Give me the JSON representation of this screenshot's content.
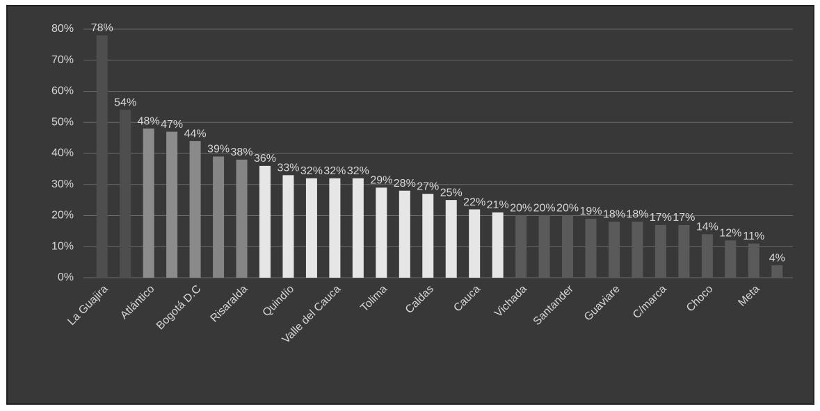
{
  "chart_data": {
    "type": "bar",
    "categories": [
      "La Guajira",
      null,
      "Atlántico",
      null,
      "Bogotá D.C",
      null,
      "Risaralda",
      null,
      "Quindío",
      null,
      "Valle del Cauca",
      null,
      "Tolima",
      null,
      "Caldas",
      null,
      "Cauca",
      null,
      "Vichada",
      null,
      "Santander",
      null,
      "Guaviare",
      null,
      "C/marca",
      null,
      "Choco",
      null,
      "Meta",
      null
    ],
    "values": [
      78,
      54,
      48,
      47,
      44,
      39,
      38,
      36,
      33,
      32,
      32,
      32,
      29,
      28,
      27,
      25,
      22,
      21,
      20,
      20,
      20,
      19,
      18,
      18,
      17,
      17,
      14,
      12,
      11,
      4
    ],
    "value_labels": [
      "78%",
      "54%",
      "48%",
      "47%",
      "44%",
      "39%",
      "38%",
      "36%",
      "33%",
      "32%",
      "32%",
      "32%",
      "29%",
      "28%",
      "27%",
      "25%",
      "22%",
      "21%",
      "20%",
      "20%",
      "20%",
      "19%",
      "18%",
      "18%",
      "17%",
      "17%",
      "14%",
      "12%",
      "11%",
      "4%"
    ],
    "colors": [
      "#4e4e4e",
      "#4e4e4e",
      "#8c8c8c",
      "#8c8c8c",
      "#8a8a8a",
      "#858585",
      "#858585",
      "#e6e6e6",
      "#e6e6e6",
      "#e6e6e6",
      "#e6e6e6",
      "#e6e6e6",
      "#e6e6e6",
      "#e6e6e6",
      "#e6e6e6",
      "#e6e6e6",
      "#e6e6e6",
      "#e6e6e6",
      "#5a5a5a",
      "#5a5a5a",
      "#5a5a5a",
      "#5a5a5a",
      "#5a5a5a",
      "#5a5a5a",
      "#5a5a5a",
      "#5a5a5a",
      "#5a5a5a",
      "#5a5a5a",
      "#5a5a5a",
      "#5a5a5a"
    ],
    "ylim": [
      0,
      80
    ],
    "yticks": [
      {
        "value": 0,
        "label": "0%"
      },
      {
        "value": 10,
        "label": "10%"
      },
      {
        "value": 20,
        "label": "20%"
      },
      {
        "value": 30,
        "label": "30%"
      },
      {
        "value": 40,
        "label": "40%"
      },
      {
        "value": 50,
        "label": "50%"
      },
      {
        "value": 60,
        "label": "60%"
      },
      {
        "value": 70,
        "label": "70%"
      },
      {
        "value": 80,
        "label": "80%"
      }
    ],
    "grid": true
  }
}
